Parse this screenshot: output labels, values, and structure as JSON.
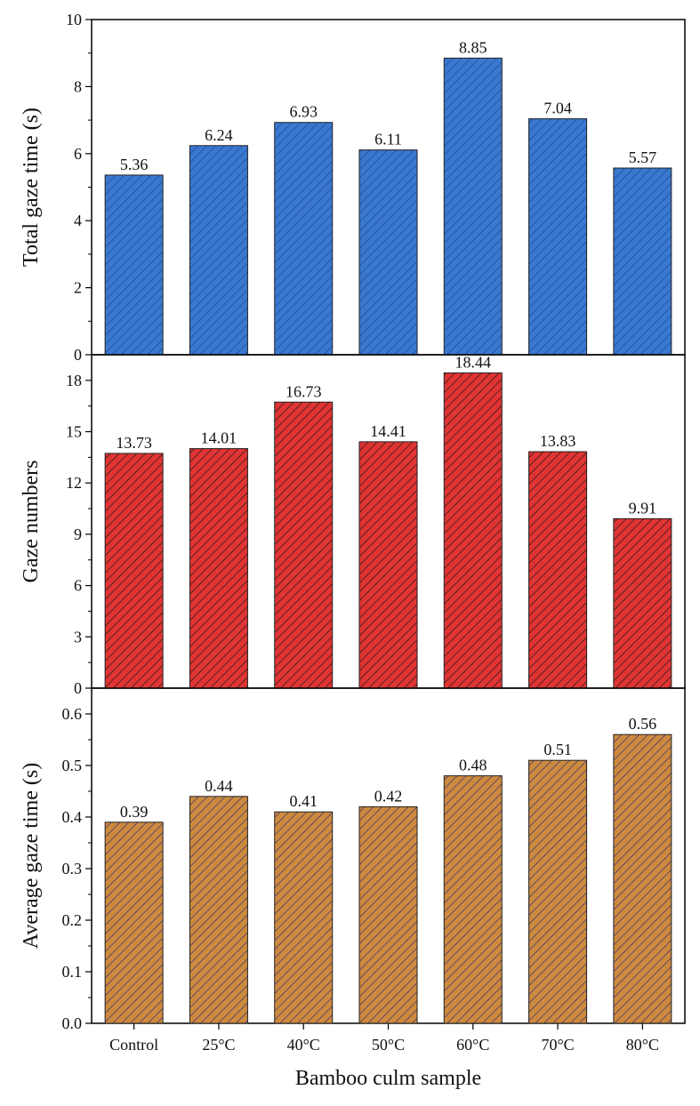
{
  "chart_data": [
    {
      "type": "bar",
      "ylabel": "Total gaze time (s)",
      "ylim": [
        0,
        10
      ],
      "yticks": [
        0,
        2,
        4,
        6,
        8,
        10
      ],
      "color": "#3a78d0",
      "categories": [
        "Control",
        "25°C",
        "40°C",
        "50°C",
        "60°C",
        "70°C",
        "80°C"
      ],
      "values": [
        5.36,
        6.24,
        6.93,
        6.11,
        8.85,
        7.04,
        5.57
      ],
      "labels": [
        "5.36",
        "6.24",
        "6.93",
        "6.11",
        "8.85",
        "7.04",
        "5.57"
      ]
    },
    {
      "type": "bar",
      "ylabel": "Gaze numbers",
      "ylim": [
        0,
        19.5
      ],
      "yticks": [
        0,
        3,
        6,
        9,
        12,
        15,
        18
      ],
      "color": "#e03434",
      "categories": [
        "Control",
        "25°C",
        "40°C",
        "50°C",
        "60°C",
        "70°C",
        "80°C"
      ],
      "values": [
        13.73,
        14.01,
        16.73,
        14.41,
        18.44,
        13.83,
        9.91
      ],
      "labels": [
        "13.73",
        "14.01",
        "16.73",
        "14.41",
        "18.44",
        "13.83",
        "9.91"
      ]
    },
    {
      "type": "bar",
      "ylabel": "Average gaze time (s)",
      "ylim": [
        0,
        0.65
      ],
      "yticks": [
        0.0,
        0.1,
        0.2,
        0.3,
        0.4,
        0.5,
        0.6
      ],
      "ytick_labels": [
        "0.0",
        "0.1",
        "0.2",
        "0.3",
        "0.4",
        "0.5",
        "0.6"
      ],
      "color": "#cd8a3e",
      "categories": [
        "Control",
        "25°C",
        "40°C",
        "50°C",
        "60°C",
        "70°C",
        "80°C"
      ],
      "values": [
        0.39,
        0.44,
        0.41,
        0.42,
        0.48,
        0.51,
        0.56
      ],
      "labels": [
        "0.39",
        "0.44",
        "0.41",
        "0.42",
        "0.48",
        "0.51",
        "0.56"
      ],
      "xlabel": "Bamboo culm sample"
    }
  ]
}
